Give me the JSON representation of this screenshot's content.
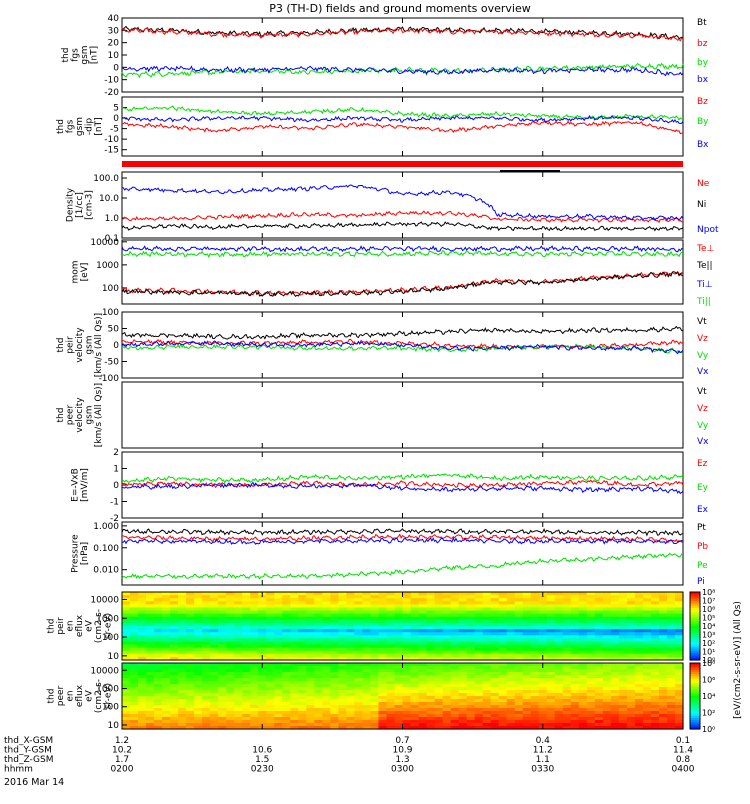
{
  "title": "P3 (TH-D) fields and ground moments overview",
  "date_label": "2016 Mar 14",
  "x_axis": {
    "time_ticks": [
      "0200",
      "0230",
      "0300",
      "0330",
      "0400"
    ],
    "rows": [
      {
        "label": "thd_X-GSM",
        "values": [
          "1.2",
          "",
          "0.7",
          "0.4",
          "0.1"
        ]
      },
      {
        "label": "thd_Y-GSM",
        "values": [
          "10.2",
          "10.6",
          "10.9",
          "11.2",
          "11.4"
        ]
      },
      {
        "label": "thd_Z-GSM",
        "values": [
          "1.7",
          "1.5",
          "1.3",
          "1.1",
          "0.8"
        ]
      },
      {
        "label": "hhmm",
        "values": [
          "0200",
          "0230",
          "0300",
          "0330",
          "0400"
        ]
      }
    ]
  },
  "colors": {
    "black": "#000000",
    "red": "#ff0000",
    "green": "#00e000",
    "blue": "#0000ff"
  },
  "colorbar": {
    "label": "[eV/(cm2-s-sr-eV)] (All Qs)",
    "top_ticks": [
      "10⁸",
      "10⁷",
      "10⁶",
      "10⁵",
      "10⁴",
      "10³",
      "10²",
      "10¹",
      "10⁰"
    ],
    "bottom_ticks": [
      "10⁸",
      "10⁶",
      "10⁴",
      "10²",
      "10⁰"
    ]
  },
  "chart_data": [
    {
      "type": "line",
      "ylabel": [
        "thd",
        "fgs",
        "gsm",
        "[nT]"
      ],
      "ylim": [
        -20,
        40
      ],
      "yticks": [
        "40",
        "30",
        "20",
        "10",
        "0",
        "-10",
        "-20"
      ],
      "series": [
        {
          "name": "Bt",
          "color": "black",
          "x": [
            0,
            5,
            10,
            15,
            20,
            25,
            30,
            35,
            40,
            45,
            50,
            55,
            60
          ],
          "values": [
            31,
            30,
            28,
            27,
            28,
            30,
            31,
            30,
            30,
            29,
            28,
            27,
            24
          ]
        },
        {
          "name": "bz",
          "color": "red",
          "x": [
            0,
            5,
            10,
            15,
            20,
            25,
            30,
            35,
            40,
            45,
            50,
            55,
            60
          ],
          "values": [
            30,
            29,
            27,
            26,
            27,
            29,
            30,
            29,
            29,
            28,
            27,
            26,
            23
          ]
        },
        {
          "name": "by",
          "color": "green",
          "x": [
            0,
            5,
            10,
            15,
            20,
            25,
            30,
            35,
            40,
            45,
            50,
            55,
            60
          ],
          "values": [
            -6,
            -5,
            -4,
            -3,
            -4,
            -3,
            -2,
            -3,
            -2,
            -1,
            0,
            1,
            1
          ]
        },
        {
          "name": "bx",
          "color": "blue",
          "x": [
            0,
            5,
            10,
            15,
            20,
            25,
            30,
            35,
            40,
            45,
            50,
            55,
            60
          ],
          "values": [
            -1,
            -1,
            -2,
            -2,
            -1,
            -2,
            -3,
            -4,
            -2,
            -3,
            -2,
            -2,
            -6
          ]
        }
      ]
    },
    {
      "type": "line",
      "ylabel": [
        "thd",
        "fgs",
        "gsm",
        "-dip",
        "[nT]"
      ],
      "ylim": [
        -18,
        10
      ],
      "yticks": [
        "5",
        "0",
        "-5",
        "-10",
        "-15"
      ],
      "series": [
        {
          "name": "Bz",
          "color": "red",
          "x": [
            0,
            5,
            10,
            15,
            20,
            25,
            30,
            35,
            40,
            45,
            50,
            55,
            60
          ],
          "values": [
            -3,
            -4,
            -6,
            -4,
            -5,
            -3,
            -4,
            -6,
            -4,
            -2,
            -3,
            -2,
            -7
          ]
        },
        {
          "name": "By",
          "color": "green",
          "x": [
            0,
            5,
            10,
            15,
            20,
            25,
            30,
            35,
            40,
            45,
            50,
            55,
            60
          ],
          "values": [
            4,
            5,
            3,
            2,
            3,
            4,
            2,
            1,
            2,
            1,
            0,
            1,
            0
          ]
        },
        {
          "name": "Bx",
          "color": "blue",
          "x": [
            0,
            5,
            10,
            15,
            20,
            25,
            30,
            35,
            40,
            45,
            50,
            55,
            60
          ],
          "values": [
            0,
            -1,
            0,
            0,
            -1,
            0,
            -1,
            0,
            0,
            -1,
            0,
            0,
            -2
          ]
        }
      ]
    },
    {
      "type": "line",
      "ylabel": [
        "Density",
        "[1/cc]",
        "[cm-3]"
      ],
      "log": true,
      "ylim": [
        0.1,
        200
      ],
      "yticks": [
        "100.0",
        "10.0",
        "1.0",
        "0.1"
      ],
      "series": [
        {
          "name": "Ne",
          "color": "red",
          "x": [
            0,
            5,
            10,
            15,
            20,
            25,
            30,
            35,
            40,
            45,
            50,
            55,
            60
          ],
          "values": [
            0.9,
            0.9,
            1.1,
            1.3,
            1.5,
            1.3,
            1.8,
            1.8,
            0.9,
            0.8,
            0.8,
            0.8,
            0.8
          ]
        },
        {
          "name": "Ni",
          "color": "black",
          "x": [
            0,
            5,
            10,
            15,
            20,
            25,
            30,
            35,
            40,
            45,
            50,
            55,
            60
          ],
          "values": [
            0.3,
            0.4,
            0.35,
            0.4,
            0.4,
            0.45,
            0.5,
            0.5,
            0.3,
            0.3,
            0.3,
            0.3,
            0.3
          ]
        },
        {
          "name": "Npot",
          "color": "blue",
          "x": [
            0,
            5,
            10,
            15,
            20,
            25,
            30,
            35,
            40,
            45,
            50,
            55,
            60
          ],
          "values": [
            30,
            25,
            20,
            25,
            30,
            40,
            15,
            20,
            1.5,
            1.2,
            1.2,
            1.0,
            1.0
          ]
        }
      ]
    },
    {
      "type": "line",
      "ylabel": [
        "mom",
        "[eV]"
      ],
      "log": true,
      "ylim": [
        20,
        12000
      ],
      "yticks": [
        "10000",
        "1000",
        "100"
      ],
      "series": [
        {
          "name": "Te⊥",
          "color": "red",
          "x": [
            0,
            5,
            10,
            15,
            20,
            25,
            30,
            35,
            40,
            45,
            50,
            55,
            60
          ],
          "values": [
            80,
            75,
            70,
            60,
            60,
            70,
            80,
            100,
            200,
            180,
            260,
            350,
            450
          ]
        },
        {
          "name": "Te||",
          "color": "black",
          "x": [
            0,
            5,
            10,
            15,
            20,
            25,
            30,
            35,
            40,
            45,
            50,
            55,
            60
          ],
          "values": [
            70,
            65,
            60,
            55,
            55,
            60,
            70,
            90,
            180,
            170,
            240,
            330,
            420
          ]
        },
        {
          "name": "Ti⊥",
          "color": "blue",
          "x": [
            0,
            5,
            10,
            15,
            20,
            25,
            30,
            35,
            40,
            45,
            50,
            55,
            60
          ],
          "values": [
            5000,
            5000,
            5000,
            4800,
            4800,
            5000,
            5000,
            5000,
            5000,
            5000,
            5000,
            5000,
            4500
          ]
        },
        {
          "name": "Ti||",
          "color": "green",
          "x": [
            0,
            5,
            10,
            15,
            20,
            25,
            30,
            35,
            40,
            45,
            50,
            55,
            60
          ],
          "values": [
            3000,
            3000,
            2900,
            2900,
            2900,
            3000,
            3000,
            3200,
            3000,
            2900,
            3000,
            3000,
            2800
          ]
        }
      ]
    },
    {
      "type": "line",
      "ylabel": [
        "thd",
        "peir",
        "velocity",
        "gsm",
        "[km/s (All Qs)]"
      ],
      "ylim": [
        -100,
        100
      ],
      "yticks": [
        "100",
        "50",
        "0",
        "-50",
        "-100"
      ],
      "series": [
        {
          "name": "Vt",
          "color": "black",
          "x": [
            0,
            5,
            10,
            15,
            20,
            25,
            30,
            35,
            40,
            45,
            50,
            55,
            60
          ],
          "values": [
            30,
            30,
            25,
            25,
            30,
            30,
            35,
            40,
            45,
            40,
            45,
            45,
            50
          ]
        },
        {
          "name": "Vz",
          "color": "red",
          "x": [
            0,
            5,
            10,
            15,
            20,
            25,
            30,
            35,
            40,
            45,
            50,
            55,
            60
          ],
          "values": [
            10,
            8,
            5,
            5,
            8,
            10,
            5,
            0,
            -5,
            -5,
            -5,
            0,
            10
          ]
        },
        {
          "name": "Vy",
          "color": "green",
          "x": [
            0,
            5,
            10,
            15,
            20,
            25,
            30,
            35,
            40,
            45,
            50,
            55,
            60
          ],
          "values": [
            -10,
            -5,
            -5,
            -5,
            -10,
            -10,
            -10,
            -15,
            -10,
            -5,
            -5,
            -10,
            -20
          ]
        },
        {
          "name": "Vx",
          "color": "blue",
          "x": [
            0,
            5,
            10,
            15,
            20,
            25,
            30,
            35,
            40,
            45,
            50,
            55,
            60
          ],
          "values": [
            0,
            5,
            5,
            0,
            0,
            5,
            0,
            -10,
            -10,
            -5,
            -10,
            -10,
            -20
          ]
        }
      ]
    },
    {
      "type": "line",
      "ylabel": [
        "thd",
        "peer",
        "velocity",
        "gsm",
        "[km/s (All Qs)]"
      ],
      "series": [
        {
          "name": "Vt",
          "color": "black",
          "x": [],
          "values": []
        },
        {
          "name": "Vz",
          "color": "red",
          "x": [],
          "values": []
        },
        {
          "name": "Vy",
          "color": "green",
          "x": [],
          "values": []
        },
        {
          "name": "Vx",
          "color": "blue",
          "x": [],
          "values": []
        }
      ]
    },
    {
      "type": "line",
      "ylabel": [
        "E=-VxB",
        "[mV/m]"
      ],
      "ylim": [
        -2,
        2
      ],
      "yticks": [
        "2",
        "1",
        "0",
        "-1",
        "-2"
      ],
      "series": [
        {
          "name": "Ez",
          "color": "red",
          "x": [
            0,
            5,
            10,
            15,
            20,
            25,
            30,
            35,
            40,
            45,
            50,
            55,
            60
          ],
          "values": [
            0,
            0.1,
            0,
            0,
            0.1,
            0,
            0.1,
            0,
            0,
            0.1,
            0.2,
            0,
            0.1
          ]
        },
        {
          "name": "Ey",
          "color": "green",
          "x": [
            0,
            5,
            10,
            15,
            20,
            25,
            30,
            35,
            40,
            45,
            50,
            55,
            60
          ],
          "values": [
            0.2,
            0.4,
            0.3,
            0.3,
            0.5,
            0.4,
            0.5,
            0.6,
            0.4,
            0.5,
            0.4,
            0.4,
            0.5
          ]
        },
        {
          "name": "Ex",
          "color": "blue",
          "x": [
            0,
            5,
            10,
            15,
            20,
            25,
            30,
            35,
            40,
            45,
            50,
            55,
            60
          ],
          "values": [
            -0.1,
            -0.1,
            0,
            0,
            -0.1,
            0,
            -0.2,
            -0.3,
            -0.2,
            -0.2,
            -0.3,
            -0.2,
            -0.4
          ]
        }
      ]
    },
    {
      "type": "line",
      "ylabel": [
        "Pressure",
        "[nPa]"
      ],
      "log": true,
      "ylim": [
        0.002,
        1.5
      ],
      "yticks": [
        "1.000",
        "0.100",
        "0.010",
        "0.001"
      ],
      "series": [
        {
          "name": "Pt",
          "color": "black",
          "x": [
            0,
            5,
            10,
            15,
            20,
            25,
            30,
            35,
            40,
            45,
            50,
            55,
            60
          ],
          "values": [
            0.55,
            0.55,
            0.5,
            0.5,
            0.52,
            0.55,
            0.58,
            0.55,
            0.55,
            0.55,
            0.5,
            0.5,
            0.45
          ]
        },
        {
          "name": "Pb",
          "color": "red",
          "x": [
            0,
            5,
            10,
            15,
            20,
            25,
            30,
            35,
            40,
            45,
            50,
            55,
            60
          ],
          "values": [
            0.3,
            0.28,
            0.25,
            0.25,
            0.27,
            0.3,
            0.32,
            0.3,
            0.3,
            0.28,
            0.26,
            0.25,
            0.2
          ]
        },
        {
          "name": "Pe",
          "color": "green",
          "x": [
            0,
            5,
            10,
            15,
            20,
            25,
            30,
            35,
            40,
            45,
            50,
            55,
            60
          ],
          "values": [
            0.005,
            0.005,
            0.005,
            0.005,
            0.005,
            0.006,
            0.008,
            0.012,
            0.015,
            0.025,
            0.03,
            0.04,
            0.05
          ]
        },
        {
          "name": "Pi",
          "color": "blue",
          "x": [
            0,
            5,
            10,
            15,
            20,
            25,
            30,
            35,
            40,
            45,
            50,
            55,
            60
          ],
          "values": [
            0.2,
            0.2,
            0.19,
            0.18,
            0.2,
            0.2,
            0.22,
            0.22,
            0.2,
            0.2,
            0.2,
            0.2,
            0.18
          ]
        }
      ]
    },
    {
      "type": "heatmap",
      "ylabel": [
        "thd",
        "peir",
        "en",
        "eflux",
        "eV",
        "(cm2-s-",
        "sr-eV)"
      ],
      "log": true,
      "ylim": [
        6,
        25000
      ],
      "yticks": [
        "10000",
        "1000",
        "100",
        "10"
      ],
      "colorbar_range": [
        1,
        100000000
      ]
    },
    {
      "type": "heatmap",
      "ylabel": [
        "thd",
        "peer",
        "en",
        "eflux",
        "eV",
        "(cm2-s-",
        "sr-eV)"
      ],
      "log": true,
      "ylim": [
        6,
        25000
      ],
      "yticks": [
        "10000",
        "1000",
        "100",
        "10"
      ],
      "colorbar_range": [
        1,
        100000000
      ]
    }
  ]
}
